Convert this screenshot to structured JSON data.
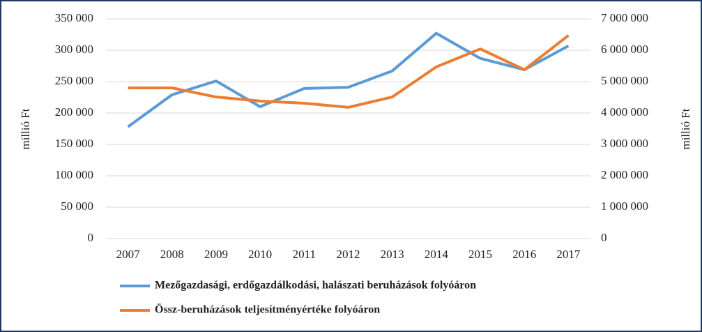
{
  "chart_data": {
    "type": "line",
    "categories": [
      "2007",
      "2008",
      "2009",
      "2010",
      "2011",
      "2012",
      "2013",
      "2014",
      "2015",
      "2016",
      "2017"
    ],
    "series": [
      {
        "name": "Mezőgazdasági, erdőgazdálkodási, halászati beruházások folyóáron",
        "color": "#5b9bd5",
        "axis": "y",
        "values": [
          178000,
          229000,
          251000,
          210000,
          239000,
          241000,
          267000,
          327000,
          287000,
          269000,
          307000
        ]
      },
      {
        "name": "Össz-beruházások teljesítményértéke folyóáron",
        "color": "#ed7d31",
        "axis": "y2",
        "values": [
          4800000,
          4800000,
          4510000,
          4380000,
          4310000,
          4180000,
          4510000,
          5470000,
          6040000,
          5380000,
          6470000
        ]
      }
    ],
    "ylabel": "millió Ft",
    "y2label": "millió Ft",
    "ylim": [
      0,
      350000
    ],
    "yticks": [
      0,
      {
        "value": 50000,
        "label": "50 000"
      },
      {
        "value": 100000,
        "label": "100 000"
      },
      {
        "value": 150000,
        "label": "150 000"
      },
      {
        "value": 200000,
        "label": "200 000"
      },
      {
        "value": 250000,
        "label": "250 000"
      },
      {
        "value": 300000,
        "label": "300 000"
      },
      {
        "value": 350000,
        "label": "350 000"
      }
    ],
    "y2lim": [
      0,
      7000000
    ],
    "y2ticks": [
      0,
      {
        "value": 1000000,
        "label": "1 000 000"
      },
      {
        "value": 2000000,
        "label": "2 000 000"
      },
      {
        "value": 3000000,
        "label": "3 000 000"
      },
      {
        "value": 4000000,
        "label": "4 000 000"
      },
      {
        "value": 5000000,
        "label": "5 000 000"
      },
      {
        "value": 6000000,
        "label": "6 000 000"
      },
      {
        "value": 7000000,
        "label": "7 000 000"
      }
    ],
    "grid": true,
    "legend": "bottom"
  }
}
